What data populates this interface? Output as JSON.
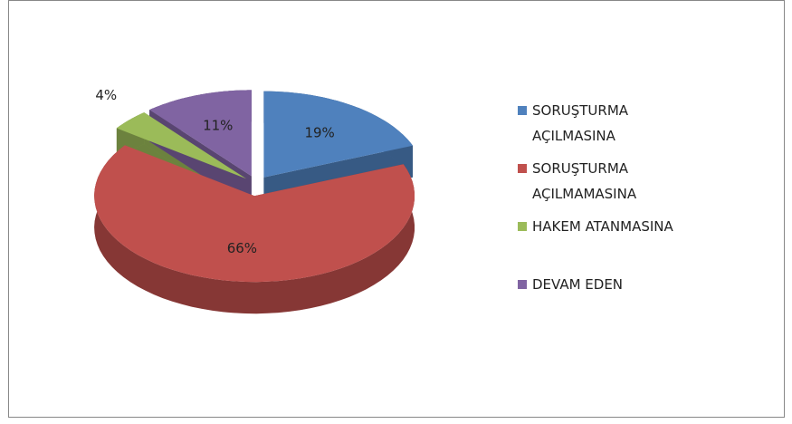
{
  "chart_data": {
    "type": "pie",
    "categories": [
      "SORUŞTURMA AÇILMASINA",
      "SORUŞTURMA AÇILMAMASINA",
      "HAKEM ATANMASINA",
      "DEVAM EDEN"
    ],
    "values": [
      19,
      66,
      4,
      11
    ],
    "value_labels": [
      "19%",
      "66%",
      "4%",
      "11%"
    ],
    "colors": [
      "#4f81bd",
      "#c0504d",
      "#9bbb59",
      "#8064a2"
    ],
    "legend": "right"
  }
}
